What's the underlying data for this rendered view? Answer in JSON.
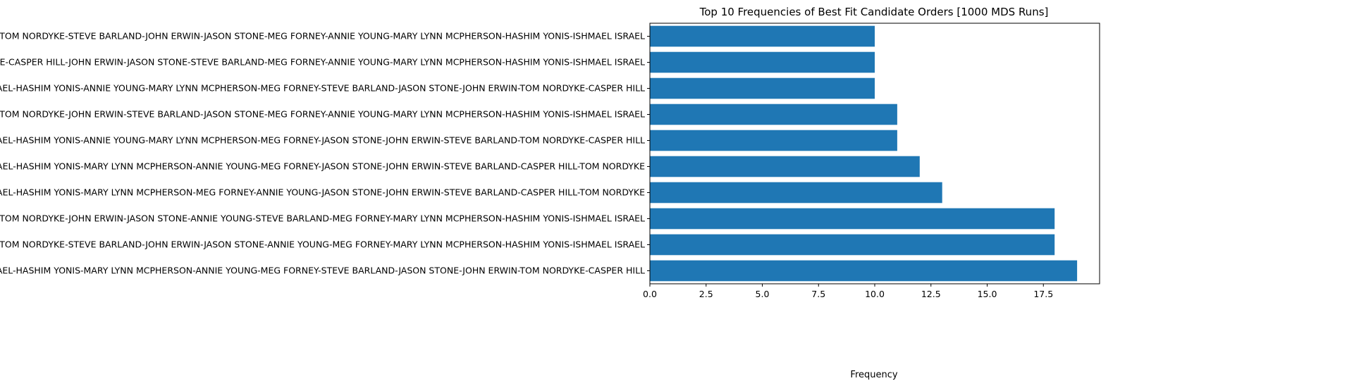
{
  "chart_data": {
    "type": "bar",
    "orientation": "horizontal",
    "title": "Top 10 Frequencies of Best Fit Candidate Orders [1000 MDS Runs]",
    "xlabel": "Frequency",
    "ylabel": "",
    "xlim": [
      0,
      20
    ],
    "x_ticks": [
      0,
      2.5,
      5,
      7.5,
      10,
      12.5,
      15,
      17.5
    ],
    "x_tick_labels": [
      "0.0",
      "2.5",
      "5.0",
      "7.5",
      "10.0",
      "12.5",
      "15.0",
      "17.5"
    ],
    "grid": false,
    "bar_color": "#1f77b4",
    "categories": [
      "CASPER HILL-TOM NORDYKE-STEVE BARLAND-JOHN ERWIN-JASON STONE-MEG FORNEY-ANNIE YOUNG-MARY LYNN MCPHERSON-HASHIM YONIS-ISHMAEL ISRAEL",
      "TOM NORDYKE-CASPER HILL-JOHN ERWIN-JASON STONE-STEVE BARLAND-MEG FORNEY-ANNIE YOUNG-MARY LYNN MCPHERSON-HASHIM YONIS-ISHMAEL ISRAEL",
      "ISHMAEL ISRAEL-HASHIM YONIS-ANNIE YOUNG-MARY LYNN MCPHERSON-MEG FORNEY-STEVE BARLAND-JASON STONE-JOHN ERWIN-TOM NORDYKE-CASPER HILL",
      "CASPER HILL-TOM NORDYKE-JOHN ERWIN-STEVE BARLAND-JASON STONE-MEG FORNEY-ANNIE YOUNG-MARY LYNN MCPHERSON-HASHIM YONIS-ISHMAEL ISRAEL",
      "ISHMAEL ISRAEL-HASHIM YONIS-ANNIE YOUNG-MARY LYNN MCPHERSON-MEG FORNEY-JASON STONE-JOHN ERWIN-STEVE BARLAND-TOM NORDYKE-CASPER HILL",
      "ISHMAEL ISRAEL-HASHIM YONIS-MARY LYNN MCPHERSON-ANNIE YOUNG-MEG FORNEY-JASON STONE-JOHN ERWIN-STEVE BARLAND-CASPER HILL-TOM NORDYKE",
      "ISHMAEL ISRAEL-HASHIM YONIS-MARY LYNN MCPHERSON-MEG FORNEY-ANNIE YOUNG-JASON STONE-JOHN ERWIN-STEVE BARLAND-CASPER HILL-TOM NORDYKE",
      "CASPER HILL-TOM NORDYKE-JOHN ERWIN-JASON STONE-ANNIE YOUNG-STEVE BARLAND-MEG FORNEY-MARY LYNN MCPHERSON-HASHIM YONIS-ISHMAEL ISRAEL",
      "CASPER HILL-TOM NORDYKE-STEVE BARLAND-JOHN ERWIN-JASON STONE-ANNIE YOUNG-MEG FORNEY-MARY LYNN MCPHERSON-HASHIM YONIS-ISHMAEL ISRAEL",
      "ISHMAEL ISRAEL-HASHIM YONIS-MARY LYNN MCPHERSON-ANNIE YOUNG-MEG FORNEY-STEVE BARLAND-JASON STONE-JOHN ERWIN-TOM NORDYKE-CASPER HILL"
    ],
    "values": [
      10,
      10,
      10,
      11,
      11,
      12,
      13,
      18,
      18,
      19
    ]
  }
}
